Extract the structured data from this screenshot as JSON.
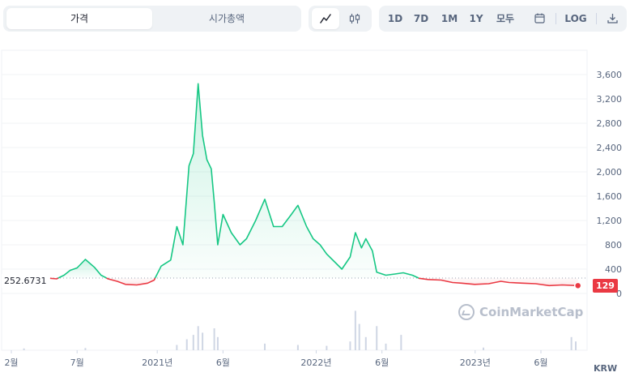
{
  "tabs": {
    "price": "가격",
    "market_cap": "시가총액"
  },
  "chart_types": {
    "line_icon": "line-chart-icon",
    "candle_icon": "candlestick-icon"
  },
  "ranges": {
    "d1": "1D",
    "d7": "7D",
    "m1": "1M",
    "y1": "1Y",
    "all": "모두",
    "calendar_icon": "calendar-icon",
    "log": "LOG",
    "download_icon": "download-icon"
  },
  "labels": {
    "start_price": "252.6731",
    "current_price": "129",
    "currency": "KRW",
    "watermark": "CoinMarketCap"
  },
  "colors": {
    "up": "#16c784",
    "down": "#ea3943",
    "accent_up_fill": "#16c784",
    "axis_text": "#58667e",
    "volume": "#cfd6e4"
  },
  "chart_data": {
    "type": "line",
    "title": "",
    "xlabel": "",
    "ylabel": "",
    "ylim": [
      0,
      3800
    ],
    "y_ticks": [
      "0",
      "400",
      "800",
      "1,200",
      "1,600",
      "2,000",
      "2,400",
      "2,800",
      "3,200",
      "3,600"
    ],
    "x_ticks": [
      {
        "label": "2월",
        "date": "2020-02-01"
      },
      {
        "label": "7월",
        "date": "2020-07-01"
      },
      {
        "label": "2021년",
        "date": "2021-01-01"
      },
      {
        "label": "6월",
        "date": "2021-06-01"
      },
      {
        "label": "2022년",
        "date": "2022-01-01"
      },
      {
        "label": "6월",
        "date": "2022-06-01"
      },
      {
        "label": "2023년",
        "date": "2023-01-01"
      },
      {
        "label": "6월",
        "date": "2023-06-01"
      }
    ],
    "baseline": 252.6731,
    "series": [
      {
        "values": [
          [
            "2020-04-30",
            250
          ],
          [
            "2020-05-15",
            240
          ],
          [
            "2020-06-01",
            300
          ],
          [
            "2020-06-15",
            380
          ],
          [
            "2020-07-01",
            420
          ],
          [
            "2020-07-20",
            560
          ],
          [
            "2020-08-10",
            430
          ],
          [
            "2020-08-25",
            300
          ],
          [
            "2020-09-10",
            240
          ],
          [
            "2020-10-01",
            200
          ],
          [
            "2020-10-20",
            150
          ],
          [
            "2020-11-15",
            140
          ],
          [
            "2020-12-10",
            170
          ],
          [
            "2020-12-25",
            220
          ],
          [
            "2021-01-10",
            450
          ],
          [
            "2021-02-01",
            550
          ],
          [
            "2021-02-15",
            1100
          ],
          [
            "2021-03-01",
            800
          ],
          [
            "2021-03-15",
            2100
          ],
          [
            "2021-03-25",
            2300
          ],
          [
            "2021-04-05",
            3450
          ],
          [
            "2021-04-15",
            2600
          ],
          [
            "2021-04-25",
            2200
          ],
          [
            "2021-05-05",
            2050
          ],
          [
            "2021-05-12",
            1500
          ],
          [
            "2021-05-20",
            800
          ],
          [
            "2021-06-01",
            1300
          ],
          [
            "2021-06-20",
            1000
          ],
          [
            "2021-07-10",
            800
          ],
          [
            "2021-07-25",
            900
          ],
          [
            "2021-08-15",
            1200
          ],
          [
            "2021-09-05",
            1550
          ],
          [
            "2021-09-25",
            1100
          ],
          [
            "2021-10-15",
            1100
          ],
          [
            "2021-11-05",
            1300
          ],
          [
            "2021-11-20",
            1450
          ],
          [
            "2021-12-10",
            1100
          ],
          [
            "2021-12-25",
            900
          ],
          [
            "2022-01-10",
            800
          ],
          [
            "2022-01-25",
            650
          ],
          [
            "2022-02-15",
            500
          ],
          [
            "2022-03-01",
            400
          ],
          [
            "2022-03-20",
            600
          ],
          [
            "2022-04-01",
            1000
          ],
          [
            "2022-04-15",
            750
          ],
          [
            "2022-04-25",
            900
          ],
          [
            "2022-05-10",
            700
          ],
          [
            "2022-05-20",
            350
          ],
          [
            "2022-06-10",
            300
          ],
          [
            "2022-07-01",
            320
          ],
          [
            "2022-07-20",
            340
          ],
          [
            "2022-08-10",
            300
          ],
          [
            "2022-08-25",
            250
          ],
          [
            "2022-09-15",
            230
          ],
          [
            "2022-10-15",
            220
          ],
          [
            "2022-11-10",
            180
          ],
          [
            "2022-12-01",
            170
          ],
          [
            "2022-12-31",
            150
          ],
          [
            "2023-02-01",
            160
          ],
          [
            "2023-03-01",
            200
          ],
          [
            "2023-03-20",
            180
          ],
          [
            "2023-04-20",
            170
          ],
          [
            "2023-05-20",
            160
          ],
          [
            "2023-06-20",
            130
          ],
          [
            "2023-07-20",
            140
          ],
          [
            "2023-08-25",
            129
          ]
        ]
      }
    ],
    "volume": {
      "note": "relative bars",
      "values": [
        [
          "2020-03-01",
          0.04
        ],
        [
          "2020-07-20",
          0.05
        ],
        [
          "2021-02-15",
          0.12
        ],
        [
          "2021-03-10",
          0.25
        ],
        [
          "2021-03-25",
          0.35
        ],
        [
          "2021-04-05",
          0.55
        ],
        [
          "2021-04-15",
          0.4
        ],
        [
          "2021-05-12",
          0.5
        ],
        [
          "2021-05-20",
          0.3
        ],
        [
          "2021-09-05",
          0.15
        ],
        [
          "2021-11-20",
          0.12
        ],
        [
          "2022-01-25",
          0.1
        ],
        [
          "2022-03-20",
          0.2
        ],
        [
          "2022-04-01",
          0.9
        ],
        [
          "2022-04-10",
          0.6
        ],
        [
          "2022-04-25",
          0.3
        ],
        [
          "2022-05-20",
          0.55
        ],
        [
          "2022-06-10",
          0.15
        ],
        [
          "2022-07-15",
          0.35
        ],
        [
          "2023-01-20",
          0.06
        ],
        [
          "2023-08-10",
          0.3
        ],
        [
          "2023-08-20",
          0.2
        ]
      ]
    }
  }
}
